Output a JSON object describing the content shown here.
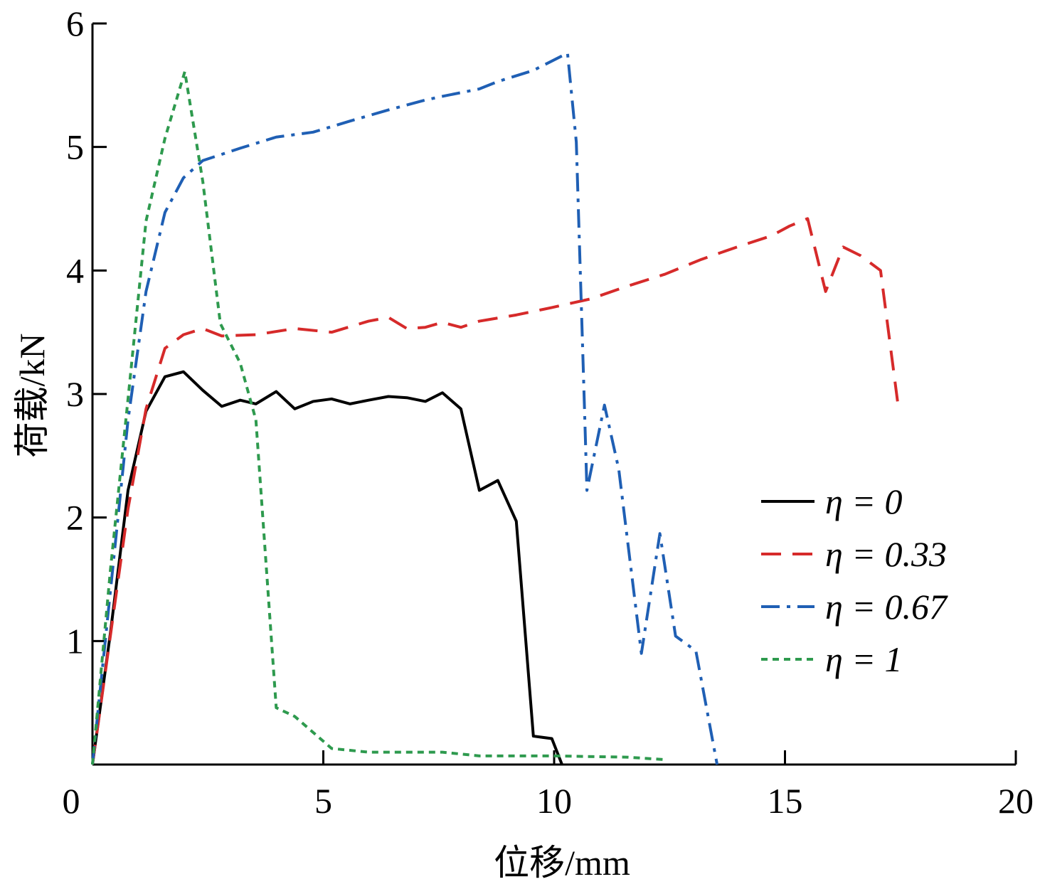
{
  "chart_data": {
    "type": "line",
    "x_label": "位移/mm",
    "y_label": "荷载/kN",
    "xlim": [
      0,
      20
    ],
    "xticks": [
      0,
      5,
      10,
      15,
      20
    ],
    "ylim": [
      0,
      6
    ],
    "yticks": [
      1,
      2,
      3,
      4,
      5,
      6
    ],
    "legend": "lower right",
    "series": [
      {
        "name": "η = 0",
        "color": "#000000",
        "dash": "solid",
        "x": [
          0,
          0.39,
          0.77,
          1.16,
          1.57,
          1.97,
          2.39,
          2.8,
          3.2,
          3.54,
          3.98,
          4.38,
          4.78,
          5.18,
          5.58,
          5.98,
          6.41,
          6.81,
          7.21,
          7.58,
          7.98,
          8.38,
          8.78,
          9.18,
          9.55,
          9.95,
          10.17
        ],
        "values": [
          0,
          1.07,
          2.22,
          2.86,
          3.14,
          3.18,
          3.03,
          2.9,
          2.95,
          2.92,
          3.02,
          2.88,
          2.94,
          2.96,
          2.92,
          2.95,
          2.98,
          2.97,
          2.94,
          3.01,
          2.88,
          2.22,
          2.3,
          1.97,
          0.23,
          0.21,
          0
        ]
      },
      {
        "name": "η = 0.33",
        "color": "#d62a2a",
        "dash": "dashed",
        "x": [
          0,
          0.77,
          1.16,
          1.57,
          1.97,
          2.39,
          2.8,
          3.54,
          4.38,
          5.18,
          5.98,
          6.41,
          6.81,
          7.21,
          7.58,
          7.98,
          8.38,
          9.18,
          9.95,
          10.79,
          11.56,
          12.4,
          13.19,
          13.96,
          14.7,
          15.1,
          15.49,
          15.88,
          16.26,
          16.64,
          17.07,
          17.47
        ],
        "values": [
          0,
          2.07,
          2.88,
          3.37,
          3.48,
          3.53,
          3.47,
          3.48,
          3.53,
          3.5,
          3.59,
          3.62,
          3.53,
          3.54,
          3.58,
          3.54,
          3.59,
          3.64,
          3.7,
          3.77,
          3.87,
          3.97,
          4.09,
          4.19,
          4.28,
          4.36,
          4.42,
          3.83,
          4.19,
          4.12,
          4.0,
          2.85
        ]
      },
      {
        "name": "η = 0.67",
        "color": "#1f5fb4",
        "dash": "dashdot",
        "x": [
          0,
          0.39,
          0.77,
          1.16,
          1.57,
          1.97,
          2.39,
          3.2,
          3.98,
          4.78,
          5.58,
          6.41,
          7.21,
          7.58,
          8.38,
          8.78,
          9.55,
          10.29,
          10.48,
          10.66,
          10.71,
          11.09,
          11.4,
          11.89,
          12.29,
          12.63,
          13.07,
          13.53
        ],
        "values": [
          0,
          1.41,
          2.79,
          3.83,
          4.47,
          4.75,
          4.89,
          4.99,
          5.08,
          5.12,
          5.21,
          5.3,
          5.38,
          5.41,
          5.47,
          5.53,
          5.62,
          5.76,
          5.04,
          2.85,
          2.22,
          2.91,
          2.39,
          0.9,
          1.87,
          1.04,
          0.92,
          0
        ]
      },
      {
        "name": "η = 1",
        "color": "#2e9a4e",
        "dash": "dotted",
        "x": [
          0,
          0.39,
          0.77,
          1.16,
          1.57,
          2.0,
          2.39,
          2.77,
          3.2,
          3.54,
          3.98,
          4.38,
          4.78,
          5.18,
          5.98,
          6.81,
          7.58,
          8.38,
          9.95,
          11.56,
          12.4
        ],
        "values": [
          0,
          1.58,
          2.96,
          4.4,
          5.07,
          5.61,
          4.72,
          3.57,
          3.25,
          2.79,
          0.46,
          0.39,
          0.26,
          0.13,
          0.1,
          0.1,
          0.1,
          0.07,
          0.07,
          0.06,
          0.04
        ]
      }
    ]
  }
}
